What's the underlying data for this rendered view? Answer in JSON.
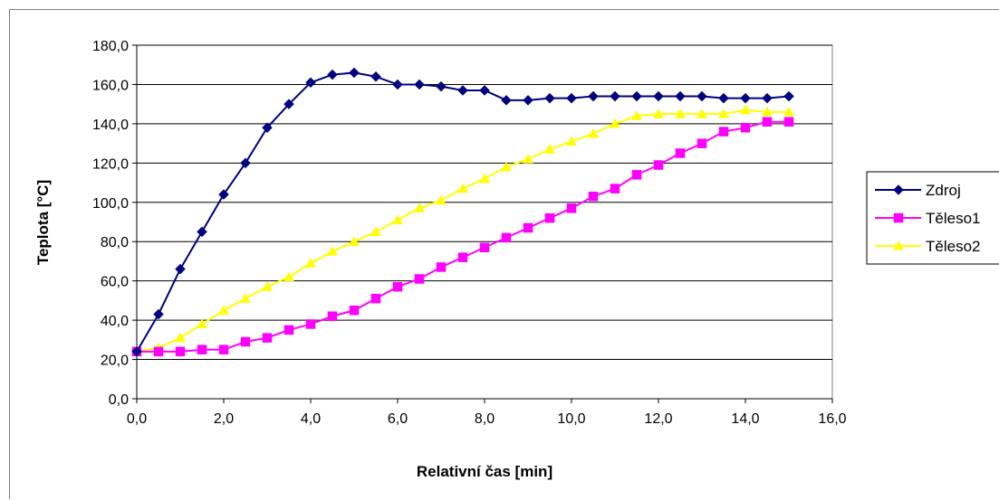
{
  "chart_data": {
    "type": "line",
    "xlabel": "Relativní čas [min]",
    "ylabel": "Teplota [°C]",
    "xlim": [
      0,
      16
    ],
    "ylim": [
      0,
      180
    ],
    "x_ticks": [
      "0,0",
      "2,0",
      "4,0",
      "6,0",
      "8,0",
      "10,0",
      "12,0",
      "14,0",
      "16,0"
    ],
    "y_ticks": [
      "0,0",
      "20,0",
      "40,0",
      "60,0",
      "80,0",
      "100,0",
      "120,0",
      "140,0",
      "160,0",
      "180,0"
    ],
    "grid": "horizontal",
    "legend_position": "right",
    "x": [
      0,
      0.5,
      1,
      1.5,
      2,
      2.5,
      3,
      3.5,
      4,
      4.5,
      5,
      5.5,
      6,
      6.5,
      7,
      7.5,
      8,
      8.5,
      9,
      9.5,
      10,
      10.5,
      11,
      11.5,
      12,
      12.5,
      13,
      13.5,
      14,
      14.5,
      15
    ],
    "series": [
      {
        "name": "Zdroj",
        "color": "#000080",
        "marker": "diamond",
        "values": [
          24,
          43,
          66,
          85,
          104,
          120,
          138,
          150,
          161,
          165,
          166,
          164,
          160,
          160,
          159,
          157,
          157,
          152,
          152,
          153,
          153,
          154,
          154,
          154,
          154,
          154,
          154,
          153,
          153,
          153,
          154
        ]
      },
      {
        "name": "Těleso1",
        "color": "#ff00ff",
        "marker": "square",
        "values": [
          24,
          24,
          24,
          25,
          25,
          29,
          31,
          35,
          38,
          42,
          45,
          51,
          57,
          61,
          67,
          72,
          77,
          82,
          87,
          92,
          97,
          103,
          107,
          114,
          119,
          125,
          130,
          136,
          138,
          141,
          141
        ]
      },
      {
        "name": "Těleso2",
        "color": "#ffff00",
        "marker": "triangle",
        "values": [
          24,
          26,
          31,
          38,
          45,
          51,
          57,
          62,
          69,
          75,
          80,
          85,
          91,
          97,
          101,
          107,
          112,
          118,
          122,
          127,
          131,
          135,
          140,
          144,
          145,
          145,
          145,
          145,
          147,
          146,
          146
        ]
      }
    ]
  }
}
